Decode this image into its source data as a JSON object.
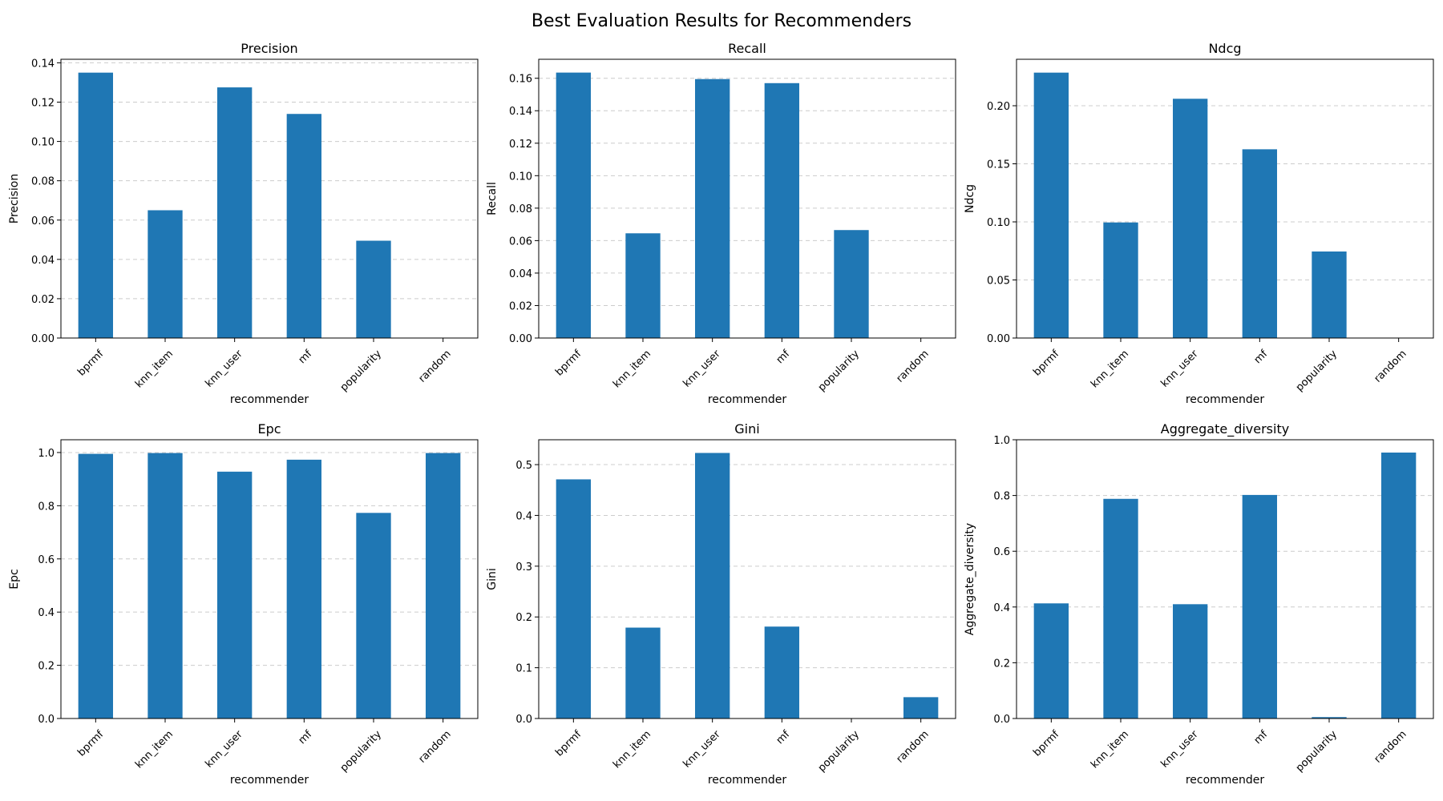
{
  "figure": {
    "title": "Best Evaluation Results for Recommenders",
    "bar_color": "#1f77b4",
    "grid_color": "#cccccc"
  },
  "chart_data": [
    {
      "type": "bar",
      "title": "Precision",
      "xlabel": "recommender",
      "ylabel": "Precision",
      "categories": [
        "bprmf",
        "knn_item",
        "knn_user",
        "mf",
        "popularity",
        "random"
      ],
      "values": [
        0.135,
        0.065,
        0.1275,
        0.114,
        0.0495,
        0.0
      ],
      "ylim": [
        0,
        0.1418
      ],
      "yticks": [
        "0.00",
        "0.02",
        "0.04",
        "0.06",
        "0.08",
        "0.10",
        "0.12",
        "0.14"
      ],
      "grid": "y"
    },
    {
      "type": "bar",
      "title": "Recall",
      "xlabel": "recommender",
      "ylabel": "Recall",
      "categories": [
        "bprmf",
        "knn_item",
        "knn_user",
        "mf",
        "popularity",
        "random"
      ],
      "values": [
        0.1635,
        0.0645,
        0.1595,
        0.157,
        0.0665,
        0.0
      ],
      "ylim": [
        0,
        0.1717
      ],
      "yticks": [
        "0.00",
        "0.02",
        "0.04",
        "0.06",
        "0.08",
        "0.10",
        "0.12",
        "0.14",
        "0.16"
      ],
      "grid": "y"
    },
    {
      "type": "bar",
      "title": "Ndcg",
      "xlabel": "recommender",
      "ylabel": "Ndcg",
      "categories": [
        "bprmf",
        "knn_item",
        "knn_user",
        "mf",
        "popularity",
        "random"
      ],
      "values": [
        0.2285,
        0.0995,
        0.206,
        0.1625,
        0.0745,
        0.0
      ],
      "ylim": [
        0,
        0.24
      ],
      "yticks": [
        "0.00",
        "0.05",
        "0.10",
        "0.15",
        "0.20"
      ],
      "grid": "y"
    },
    {
      "type": "bar",
      "title": "Epc",
      "xlabel": "recommender",
      "ylabel": "Epc",
      "categories": [
        "bprmf",
        "knn_item",
        "knn_user",
        "mf",
        "popularity",
        "random"
      ],
      "values": [
        0.995,
        0.998,
        0.928,
        0.973,
        0.773,
        0.998
      ],
      "ylim": [
        0,
        1.048
      ],
      "yticks": [
        "0.0",
        "0.2",
        "0.4",
        "0.6",
        "0.8",
        "1.0"
      ],
      "grid": "y"
    },
    {
      "type": "bar",
      "title": "Gini",
      "xlabel": "recommender",
      "ylabel": "Gini",
      "categories": [
        "bprmf",
        "knn_item",
        "knn_user",
        "mf",
        "popularity",
        "random"
      ],
      "values": [
        0.471,
        0.179,
        0.523,
        0.181,
        0.0,
        0.042
      ],
      "ylim": [
        0,
        0.549
      ],
      "yticks": [
        "0.0",
        "0.1",
        "0.2",
        "0.3",
        "0.4",
        "0.5"
      ],
      "grid": "y"
    },
    {
      "type": "bar",
      "title": "Aggregate_diversity",
      "xlabel": "recommender",
      "ylabel": "Aggregate_diversity",
      "categories": [
        "bprmf",
        "knn_item",
        "knn_user",
        "mf",
        "popularity",
        "random"
      ],
      "values": [
        0.413,
        0.788,
        0.41,
        0.802,
        0.005,
        0.954
      ],
      "ylim": [
        0,
        1.0
      ],
      "yticks": [
        "0.0",
        "0.2",
        "0.4",
        "0.6",
        "0.8",
        "1.0"
      ],
      "grid": "y"
    }
  ]
}
